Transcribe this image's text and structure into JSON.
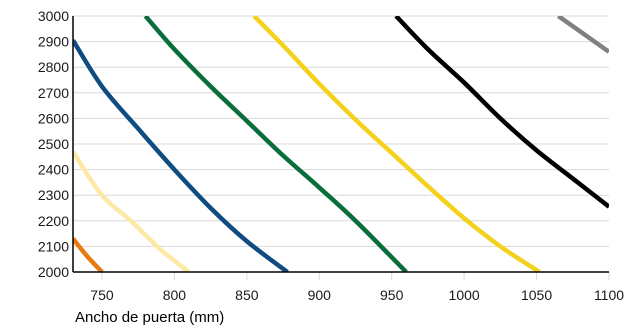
{
  "chart_data": {
    "type": "line",
    "title": "",
    "xlabel": "Ancho de puerta (mm)",
    "ylabel": "",
    "xlim": [
      730,
      1100
    ],
    "ylim": [
      2000,
      3000
    ],
    "x_ticks": [
      750,
      800,
      850,
      900,
      950,
      1000,
      1050,
      1100
    ],
    "y_ticks": [
      2000,
      2100,
      2200,
      2300,
      2400,
      2500,
      2600,
      2700,
      2800,
      2900,
      3000
    ],
    "grid": "horizontal",
    "legend": "none",
    "series": [
      {
        "color": "#e87b10",
        "x": [
          730,
          740,
          750
        ],
        "y": [
          2130,
          2060,
          2000
        ]
      },
      {
        "color": "#fde9a6",
        "x": [
          730,
          750,
          770,
          790,
          810
        ],
        "y": [
          2470,
          2300,
          2200,
          2090,
          2000
        ]
      },
      {
        "color": "#0f4c81",
        "x": [
          730,
          750,
          775,
          800,
          825,
          850,
          878
        ],
        "y": [
          2905,
          2725,
          2560,
          2400,
          2250,
          2120,
          2000
        ]
      },
      {
        "color": "#0a6e3c",
        "x": [
          780,
          800,
          825,
          850,
          875,
          900,
          925,
          960
        ],
        "y": [
          3000,
          2870,
          2725,
          2590,
          2455,
          2330,
          2200,
          2000
        ]
      },
      {
        "color": "#f4d11c",
        "x": [
          855,
          875,
          900,
          925,
          950,
          975,
          1000,
          1025,
          1052
        ],
        "y": [
          3000,
          2885,
          2735,
          2595,
          2465,
          2335,
          2210,
          2100,
          2000
        ]
      },
      {
        "color": "#000000",
        "x": [
          953,
          975,
          1000,
          1025,
          1050,
          1075,
          1100
        ],
        "y": [
          3000,
          2870,
          2740,
          2600,
          2475,
          2365,
          2255
        ]
      },
      {
        "color": "#808080",
        "x": [
          1065,
          1080,
          1100
        ],
        "y": [
          3000,
          2940,
          2860
        ]
      }
    ]
  }
}
